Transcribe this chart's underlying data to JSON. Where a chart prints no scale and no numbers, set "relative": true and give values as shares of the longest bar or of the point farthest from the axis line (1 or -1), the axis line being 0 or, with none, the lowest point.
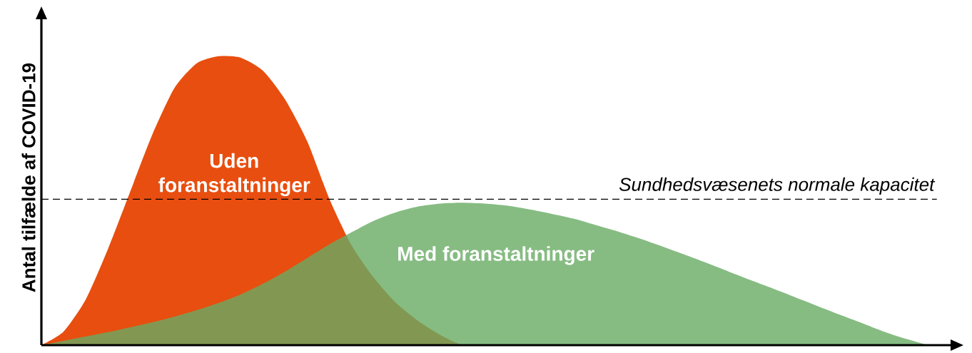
{
  "chart_data": {
    "type": "area",
    "relative": true,
    "ylabel": "Antal tilfælde af COVID-19",
    "categories": [
      null,
      null,
      null,
      null,
      null,
      null,
      null,
      null,
      null,
      null,
      null,
      null,
      null,
      null,
      null,
      null,
      null,
      null,
      null,
      null,
      null,
      null,
      null,
      null,
      null,
      null,
      null,
      null,
      null,
      null,
      null,
      null,
      null,
      null,
      null,
      null,
      null,
      null,
      null,
      null,
      null
    ],
    "series": [
      {
        "name": "Uden foranstaltninger",
        "color": "#e84e0f",
        "values": [
          0,
          0.047,
          0.158,
          0.332,
          0.53,
          0.728,
          0.89,
          0.975,
          1.0,
          0.995,
          0.95,
          0.85,
          0.705,
          0.505,
          0.345,
          0.233,
          0.146,
          0.084,
          0.035,
          0,
          0,
          0,
          0,
          0,
          0,
          0,
          0,
          0,
          0,
          0,
          0,
          0,
          0,
          0,
          0,
          0,
          0,
          0,
          0,
          0,
          0
        ]
      },
      {
        "name": "Med foranstaltninger",
        "color": "#86bc82",
        "values": [
          0,
          0.015,
          0.03,
          0.045,
          0.062,
          0.079,
          0.099,
          0.121,
          0.146,
          0.176,
          0.213,
          0.255,
          0.302,
          0.349,
          0.391,
          0.431,
          0.46,
          0.48,
          0.49,
          0.493,
          0.49,
          0.483,
          0.47,
          0.455,
          0.438,
          0.416,
          0.394,
          0.369,
          0.342,
          0.314,
          0.285,
          0.255,
          0.225,
          0.196,
          0.166,
          0.136,
          0.106,
          0.077,
          0.047,
          0.022,
          0
        ]
      }
    ],
    "ref_lines": [
      {
        "axis": "y",
        "value": 0.505,
        "label": "Sundhedsvæsenets normale kapacitet",
        "color": "#000000",
        "line_style": "dashed"
      }
    ]
  }
}
